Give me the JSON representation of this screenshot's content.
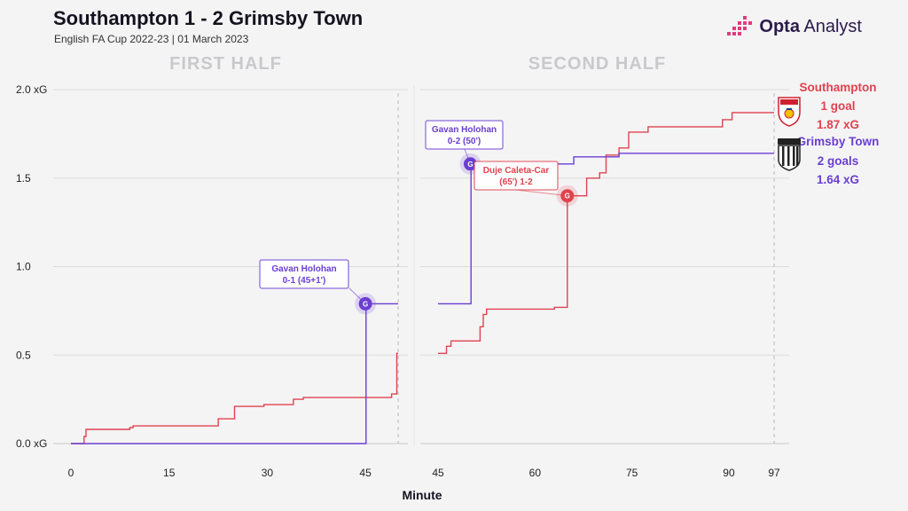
{
  "header": {
    "title": "Southampton 1 - 2 Grimsby Town",
    "subtitle": "English FA Cup 2022-23 | 01 March 2023",
    "brand": "Opta Analyst",
    "brand_part1": "Opta",
    "brand_part2": " Analyst"
  },
  "colors": {
    "southampton": "#e0434e",
    "grimsby": "#6a3fd1",
    "grid": "#dcdcdf",
    "background": "#f4f4f5"
  },
  "chart_data": {
    "type": "line",
    "xlabel": "Minute",
    "ylabel": "",
    "ylim": [
      0,
      2.0
    ],
    "yticks": [
      0.0,
      0.5,
      1.0,
      1.5,
      2.0
    ],
    "ytick_labels": [
      "0.0 xG",
      "0.5",
      "1.0",
      "1.5",
      "2.0 xG"
    ],
    "grid": true,
    "panels": [
      {
        "label": "FIRST HALF",
        "xlim": [
          0,
          50
        ],
        "xticks": [
          0,
          15,
          30,
          45
        ],
        "end_marker": 50
      },
      {
        "label": "SECOND HALF",
        "xlim": [
          45,
          97
        ],
        "xticks": [
          45,
          60,
          75,
          90,
          97
        ],
        "end_marker": 97
      }
    ],
    "series": [
      {
        "name": "Southampton",
        "goals_label": "1 goal",
        "xg_label": "1.87 xG",
        "first_half": [
          [
            0,
            0
          ],
          [
            2,
            0.04
          ],
          [
            2.3,
            0.08
          ],
          [
            9,
            0.09
          ],
          [
            9.5,
            0.1
          ],
          [
            22.5,
            0.14
          ],
          [
            25,
            0.21
          ],
          [
            29.5,
            0.22
          ],
          [
            34,
            0.25
          ],
          [
            35.5,
            0.26
          ],
          [
            49,
            0.28
          ],
          [
            49.8,
            0.51
          ],
          [
            50,
            0.51
          ]
        ],
        "second_half": [
          [
            45,
            0.51
          ],
          [
            46.3,
            0.55
          ],
          [
            47,
            0.58
          ],
          [
            51.5,
            0.66
          ],
          [
            52,
            0.73
          ],
          [
            52.5,
            0.76
          ],
          [
            63,
            0.77
          ],
          [
            65,
            1.4
          ],
          [
            68,
            1.5
          ],
          [
            70,
            1.53
          ],
          [
            71,
            1.63
          ],
          [
            73,
            1.67
          ],
          [
            74.5,
            1.76
          ],
          [
            77.5,
            1.79
          ],
          [
            89,
            1.83
          ],
          [
            90.5,
            1.87
          ],
          [
            97,
            1.87
          ]
        ]
      },
      {
        "name": "Grimsby Town",
        "goals_label": "2 goals",
        "xg_label": "1.64 xG",
        "first_half": [
          [
            0,
            0
          ],
          [
            45,
            0
          ],
          [
            45.1,
            0.79
          ],
          [
            50,
            0.79
          ]
        ],
        "second_half": [
          [
            45,
            0.79
          ],
          [
            50,
            0.79
          ],
          [
            50.1,
            1.58
          ],
          [
            59,
            1.58
          ],
          [
            63,
            1.58
          ],
          [
            66,
            1.62
          ],
          [
            73,
            1.64
          ],
          [
            97,
            1.64
          ]
        ]
      }
    ],
    "goals": [
      {
        "team": "Grimsby Town",
        "panel": 0,
        "minute": 45,
        "xg": 0.79,
        "marker": "G",
        "label_line1": "Gavan Holohan",
        "label_line2": "0-1 (45+1')"
      },
      {
        "team": "Grimsby Town",
        "panel": 1,
        "minute": 50,
        "xg": 1.58,
        "marker": "G",
        "label_line1": "Gavan Holohan",
        "label_line2": "0-2 (50')"
      },
      {
        "team": "Southampton",
        "panel": 1,
        "minute": 65,
        "xg": 1.4,
        "marker": "G",
        "label_line1": "Duje Caleta-Car",
        "label_line2": "(65') 1-2"
      }
    ]
  }
}
